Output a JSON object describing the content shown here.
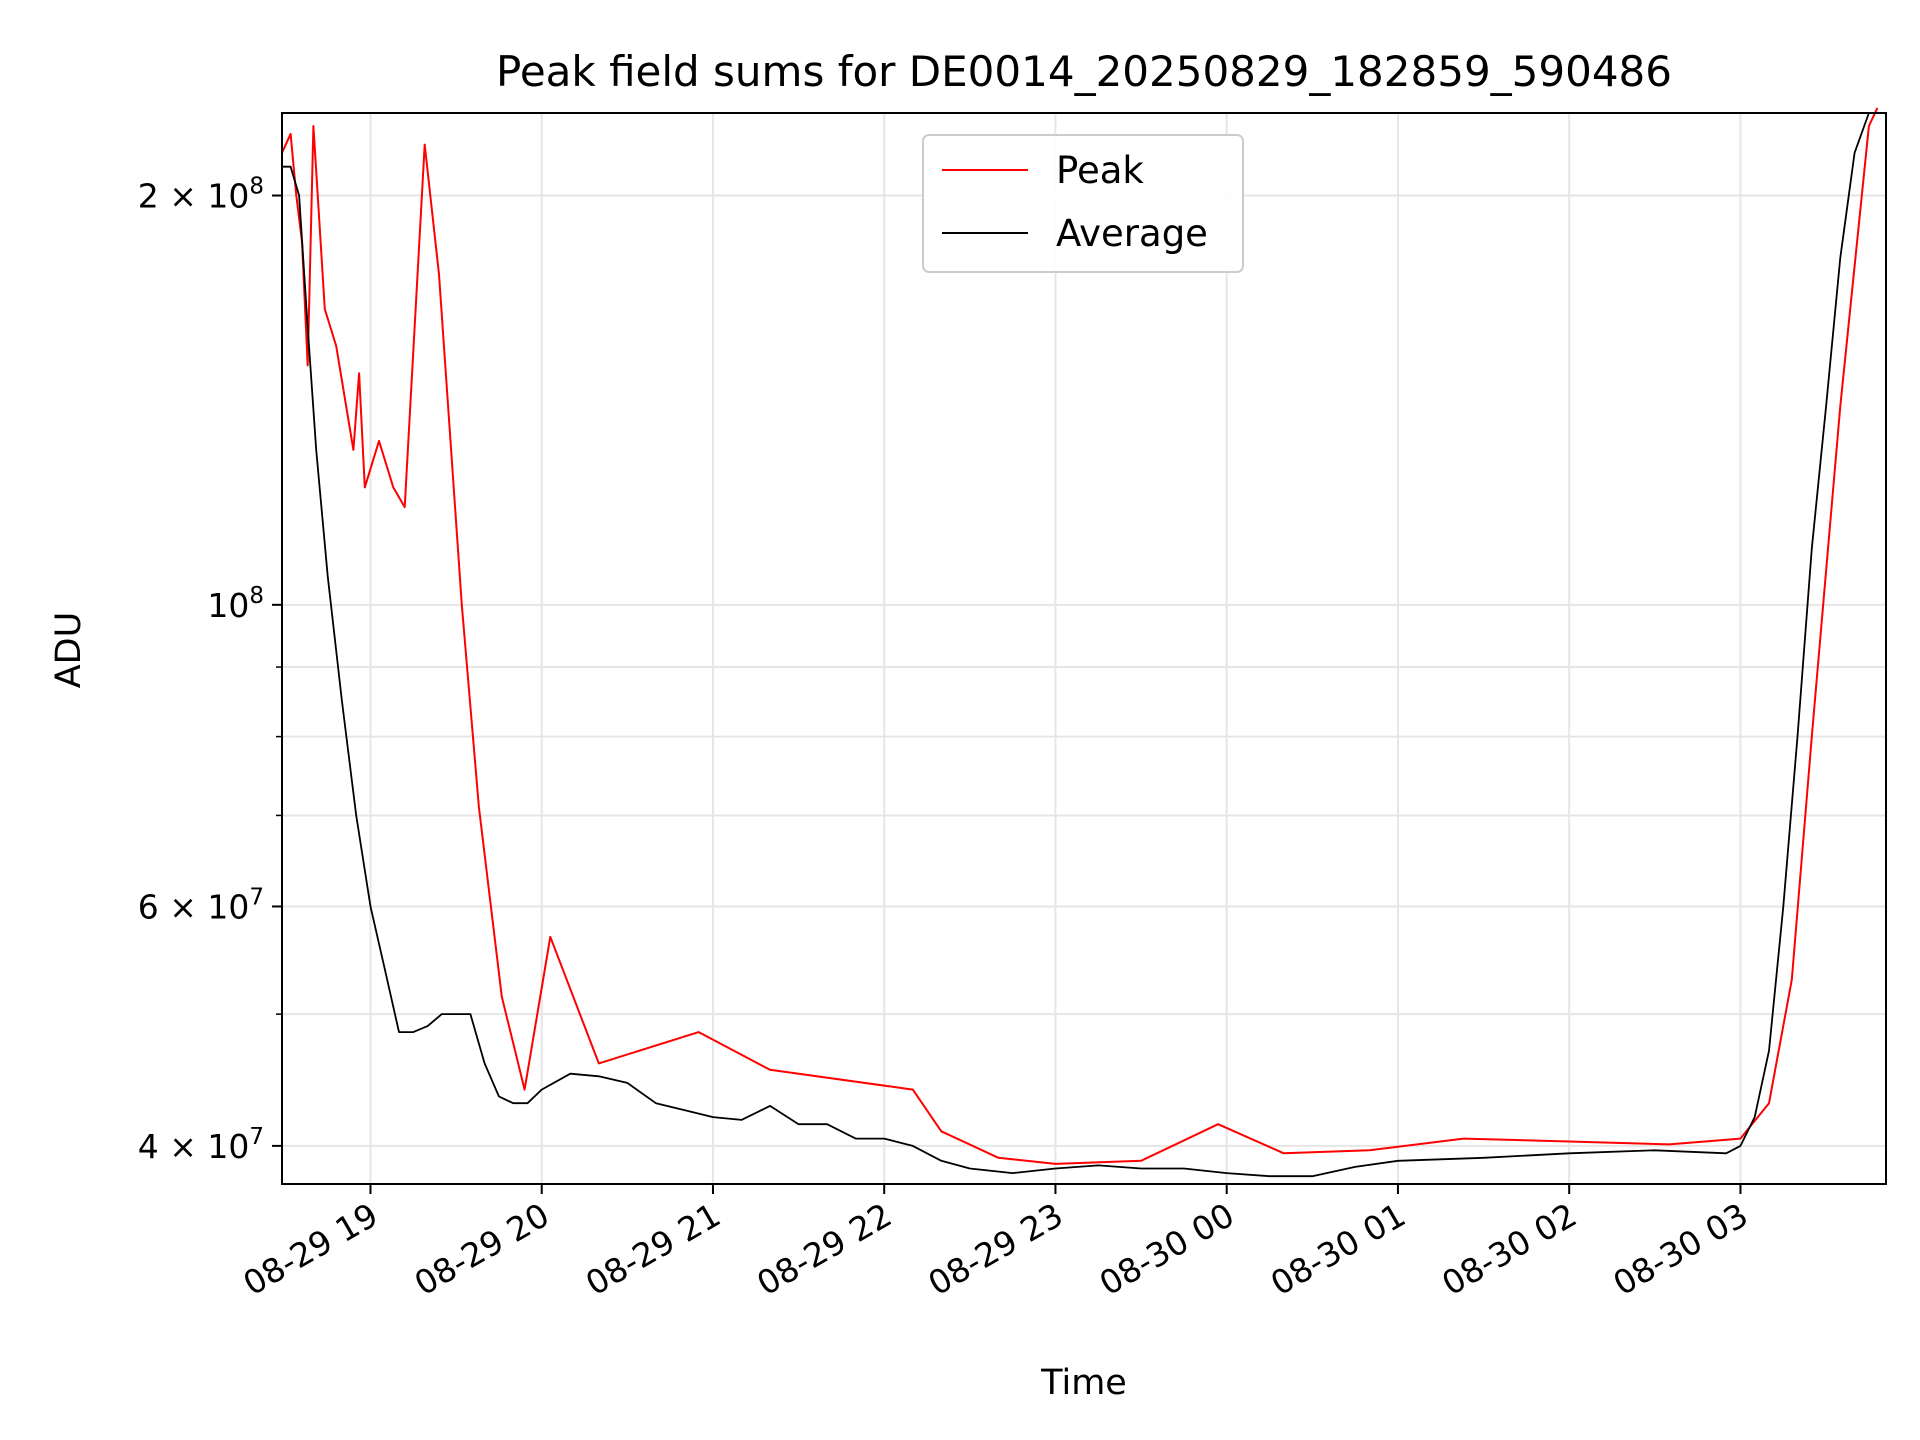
{
  "chart_data": {
    "type": "line",
    "title": "Peak field sums for DE0014_20250829_182859_590486",
    "xlabel": "Time",
    "ylabel": "ADU",
    "yscale": "log",
    "ylim": [
      37500000,
      230000000
    ],
    "xlim": [
      "2025-08-29 18:29:00",
      "2025-08-30 03:51:00"
    ],
    "grid": true,
    "legend_position": "top-center",
    "x_ticks": [
      {
        "value": "2025-08-29 19:00",
        "label": "08-29 19"
      },
      {
        "value": "2025-08-29 20:00",
        "label": "08-29 20"
      },
      {
        "value": "2025-08-29 21:00",
        "label": "08-29 21"
      },
      {
        "value": "2025-08-29 22:00",
        "label": "08-29 22"
      },
      {
        "value": "2025-08-29 23:00",
        "label": "08-29 23"
      },
      {
        "value": "2025-08-30 00:00",
        "label": "08-30 00"
      },
      {
        "value": "2025-08-30 01:00",
        "label": "08-30 01"
      },
      {
        "value": "2025-08-30 02:00",
        "label": "08-30 02"
      },
      {
        "value": "2025-08-30 03:00",
        "label": "08-30 03"
      }
    ],
    "y_ticks": [
      {
        "value": 40000000,
        "mantissa": "4",
        "exponent": "7"
      },
      {
        "value": 60000000,
        "mantissa": "6",
        "exponent": "7"
      },
      {
        "value": 100000000,
        "mantissa": "",
        "exponent": "8"
      },
      {
        "value": 200000000,
        "mantissa": "2",
        "exponent": "8"
      }
    ],
    "y_minor_ticks": [
      50000000,
      70000000,
      80000000,
      90000000
    ],
    "series": [
      {
        "name": "Average",
        "color": "#000000",
        "x": [
          "2025-08-29 18:29",
          "2025-08-29 18:32",
          "2025-08-29 18:35",
          "2025-08-29 18:38",
          "2025-08-29 18:41",
          "2025-08-29 18:45",
          "2025-08-29 18:50",
          "2025-08-29 18:55",
          "2025-08-29 19:00",
          "2025-08-29 19:05",
          "2025-08-29 19:10",
          "2025-08-29 19:15",
          "2025-08-29 19:20",
          "2025-08-29 19:25",
          "2025-08-29 19:30",
          "2025-08-29 19:35",
          "2025-08-29 19:40",
          "2025-08-29 19:45",
          "2025-08-29 19:50",
          "2025-08-29 19:55",
          "2025-08-29 20:00",
          "2025-08-29 20:10",
          "2025-08-29 20:20",
          "2025-08-29 20:30",
          "2025-08-29 20:40",
          "2025-08-29 20:50",
          "2025-08-29 21:00",
          "2025-08-29 21:10",
          "2025-08-29 21:20",
          "2025-08-29 21:30",
          "2025-08-29 21:40",
          "2025-08-29 21:50",
          "2025-08-29 22:00",
          "2025-08-29 22:10",
          "2025-08-29 22:20",
          "2025-08-29 22:30",
          "2025-08-29 22:45",
          "2025-08-29 23:00",
          "2025-08-29 23:15",
          "2025-08-29 23:30",
          "2025-08-29 23:45",
          "2025-08-30 00:00",
          "2025-08-30 00:15",
          "2025-08-30 00:30",
          "2025-08-30 00:45",
          "2025-08-30 01:00",
          "2025-08-30 01:30",
          "2025-08-30 02:00",
          "2025-08-30 02:30",
          "2025-08-30 02:55",
          "2025-08-30 03:00",
          "2025-08-30 03:05",
          "2025-08-30 03:10",
          "2025-08-30 03:15",
          "2025-08-30 03:20",
          "2025-08-30 03:25",
          "2025-08-30 03:30",
          "2025-08-30 03:35",
          "2025-08-30 03:40",
          "2025-08-30 03:45",
          "2025-08-30 03:48"
        ],
        "y": [
          210000000,
          210000000,
          200000000,
          160000000,
          130000000,
          105000000,
          85000000,
          70000000,
          60000000,
          54000000,
          48500000,
          48500000,
          49000000,
          50000000,
          50000000,
          50000000,
          46000000,
          43500000,
          43000000,
          43000000,
          44000000,
          45200000,
          45000000,
          44500000,
          43000000,
          42500000,
          42000000,
          41800000,
          42800000,
          41500000,
          41500000,
          40500000,
          40500000,
          40000000,
          39000000,
          38500000,
          38200000,
          38500000,
          38700000,
          38500000,
          38500000,
          38200000,
          38000000,
          38000000,
          38600000,
          39000000,
          39200000,
          39500000,
          39700000,
          39500000,
          40000000,
          42000000,
          47000000,
          60000000,
          80000000,
          110000000,
          140000000,
          180000000,
          215000000,
          230000000,
          230000000
        ]
      },
      {
        "name": "Peak",
        "color": "#ff0000",
        "x": [
          "2025-08-29 18:29",
          "2025-08-29 18:32",
          "2025-08-29 18:34",
          "2025-08-29 18:36",
          "2025-08-29 18:38",
          "2025-08-29 18:40",
          "2025-08-29 18:44",
          "2025-08-29 18:48",
          "2025-08-29 18:54",
          "2025-08-29 18:56",
          "2025-08-29 18:58",
          "2025-08-29 19:03",
          "2025-08-29 19:08",
          "2025-08-29 19:12",
          "2025-08-29 19:19",
          "2025-08-29 19:24",
          "2025-08-29 19:32",
          "2025-08-29 19:38",
          "2025-08-29 19:46",
          "2025-08-29 19:54",
          "2025-08-29 20:03",
          "2025-08-29 20:20",
          "2025-08-29 20:55",
          "2025-08-29 21:20",
          "2025-08-29 22:10",
          "2025-08-29 22:20",
          "2025-08-29 22:40",
          "2025-08-29 23:00",
          "2025-08-29 23:30",
          "2025-08-29 23:57",
          "2025-08-30 00:20",
          "2025-08-30 00:50",
          "2025-08-30 01:23",
          "2025-08-30 02:00",
          "2025-08-30 02:35",
          "2025-08-30 03:00",
          "2025-08-30 03:10",
          "2025-08-30 03:18",
          "2025-08-30 03:25",
          "2025-08-30 03:35",
          "2025-08-30 03:45",
          "2025-08-30 03:48"
        ],
        "y": [
          215000000,
          222000000,
          200000000,
          185000000,
          150000000,
          225000000,
          165000000,
          155000000,
          130000000,
          148000000,
          122000000,
          132000000,
          122000000,
          118000000,
          218000000,
          175000000,
          100000000,
          71000000,
          51500000,
          44000000,
          57000000,
          46000000,
          48500000,
          45500000,
          44000000,
          41000000,
          39200000,
          38800000,
          39000000,
          41500000,
          39500000,
          39700000,
          40500000,
          40300000,
          40100000,
          40500000,
          43000000,
          53000000,
          80000000,
          140000000,
          225000000,
          232000000
        ]
      }
    ]
  }
}
